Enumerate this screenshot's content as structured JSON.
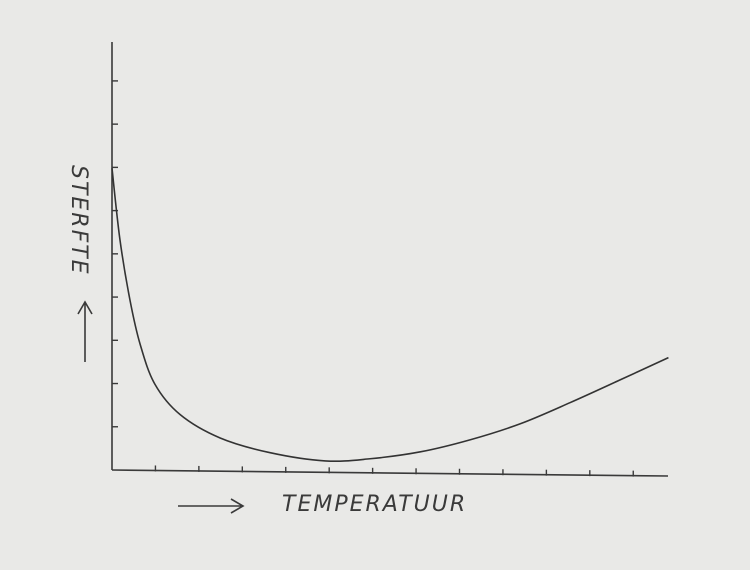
{
  "chart_data": {
    "type": "line",
    "x_label": "TEMPERATUUR",
    "y_label": "STERFTE",
    "x": [
      0,
      0.18,
      0.41,
      0.65,
      0.99,
      1.57,
      2.49,
      3.64,
      4.91,
      5.94,
      7.1,
      8.25,
      9.4,
      10.55,
      11.71,
      12.81
    ],
    "values": [
      6.98,
      5.35,
      3.95,
      2.9,
      1.98,
      1.28,
      0.74,
      0.4,
      0.21,
      0.26,
      0.42,
      0.7,
      1.07,
      1.56,
      2.09,
      2.6
    ],
    "color": "#333333",
    "xlim": [
      0,
      12.8
    ],
    "ylim": [
      0,
      9.9
    ],
    "xticks": [
      1,
      2,
      3,
      4,
      5,
      6,
      7,
      8,
      9,
      10,
      11,
      12
    ],
    "yticks": [
      1,
      2,
      3,
      4,
      5,
      6,
      7,
      8,
      9
    ]
  }
}
